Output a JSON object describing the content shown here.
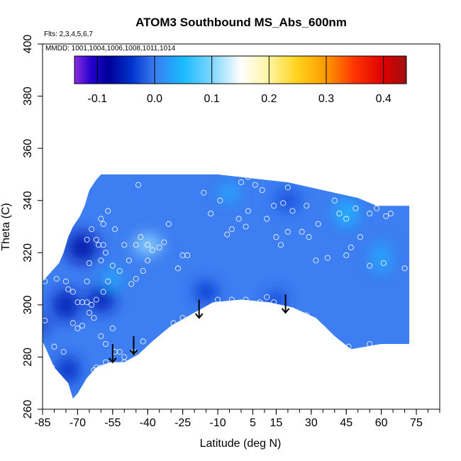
{
  "chart_data": {
    "type": "heatmap",
    "title": "ATOM3 Southbound MS_Abs_600nm",
    "flights_label": "Flts: 2,3,4,5,6,7",
    "dates_label": "MMDD: 1001,1004,1006,1008,1011,1014",
    "xlabel": "Latitude (deg N)",
    "ylabel": "Theta (C)",
    "xlim": [
      -85,
      85
    ],
    "ylim": [
      260,
      400
    ],
    "x_tick_labels": [
      "-85",
      "-70",
      "-55",
      "-40",
      "-25",
      "-10",
      "5",
      "15",
      "30",
      "45",
      "60",
      "75"
    ],
    "x_tick_values": [
      -85,
      -70,
      -55,
      -40,
      -25,
      -10,
      5,
      15,
      30,
      45,
      60,
      75
    ],
    "x_minor_step": 5,
    "y_tick_labels": [
      "260",
      "280",
      "300",
      "320",
      "340",
      "360",
      "380",
      "400"
    ],
    "y_tick_values": [
      260,
      280,
      300,
      320,
      340,
      360,
      380,
      400
    ],
    "colorbar": {
      "range": [
        -0.14,
        0.44
      ],
      "tick_labels": [
        "-0.1",
        "0.0",
        "0.1",
        "0.2",
        "0.3",
        "0.4"
      ],
      "tick_values": [
        -0.1,
        0.0,
        0.1,
        0.2,
        0.3,
        0.4
      ],
      "stops": [
        {
          "v": -0.14,
          "color": "#8a2be2"
        },
        {
          "v": -0.11,
          "color": "#2200cc"
        },
        {
          "v": -0.08,
          "color": "#000099"
        },
        {
          "v": -0.04,
          "color": "#0033cc"
        },
        {
          "v": 0.0,
          "color": "#3a7cf2"
        },
        {
          "v": 0.05,
          "color": "#19bbff"
        },
        {
          "v": 0.1,
          "color": "#7fd6ff"
        },
        {
          "v": 0.15,
          "color": "#ffffff"
        },
        {
          "v": 0.2,
          "color": "#fff5a0"
        },
        {
          "v": 0.25,
          "color": "#ffd21a"
        },
        {
          "v": 0.3,
          "color": "#ff9900"
        },
        {
          "v": 0.35,
          "color": "#ff3300"
        },
        {
          "v": 0.4,
          "color": "#dd0000"
        },
        {
          "v": 0.44,
          "color": "#a01010"
        }
      ]
    },
    "field_base_color": "#3d7ef2",
    "field_outline": [
      [
        -87,
        290
      ],
      [
        -85,
        300
      ],
      [
        -85,
        309
      ],
      [
        -81,
        313
      ],
      [
        -78,
        316
      ],
      [
        -76,
        320
      ],
      [
        -74,
        326
      ],
      [
        -72,
        330
      ],
      [
        -69,
        334
      ],
      [
        -67,
        338
      ],
      [
        -65,
        344
      ],
      [
        -62,
        348
      ],
      [
        -60,
        350
      ],
      [
        -10,
        350
      ],
      [
        0,
        349
      ],
      [
        20,
        347
      ],
      [
        40,
        343
      ],
      [
        50,
        341
      ],
      [
        58,
        338
      ],
      [
        72,
        338
      ],
      [
        72,
        285
      ],
      [
        60,
        285
      ],
      [
        47,
        283
      ],
      [
        40,
        288
      ],
      [
        32,
        295
      ],
      [
        22,
        299
      ],
      [
        12,
        301
      ],
      [
        0,
        302
      ],
      [
        -12,
        301
      ],
      [
        -20,
        297
      ],
      [
        -30,
        292
      ],
      [
        -38,
        286
      ],
      [
        -44,
        281
      ],
      [
        -50,
        278
      ],
      [
        -56,
        278
      ],
      [
        -62,
        276
      ],
      [
        -66,
        272
      ],
      [
        -70,
        266
      ],
      [
        -72,
        264
      ],
      [
        -74,
        270
      ],
      [
        -80,
        276
      ],
      [
        -84,
        284
      ]
    ],
    "field_features": [
      {
        "x": -68,
        "y": 322,
        "rx": 7,
        "ry": 6,
        "v": -0.07
      },
      {
        "x": -75,
        "y": 300,
        "rx": 6,
        "ry": 6,
        "v": -0.06
      },
      {
        "x": -60,
        "y": 302,
        "rx": 6,
        "ry": 5,
        "v": -0.06
      },
      {
        "x": -85,
        "y": 292,
        "rx": 2,
        "ry": 3,
        "v": -0.08
      },
      {
        "x": -74,
        "y": 275,
        "rx": 5,
        "ry": 5,
        "v": -0.05
      },
      {
        "x": -40,
        "y": 323,
        "rx": 6,
        "ry": 4,
        "v": 0.11
      },
      {
        "x": -55,
        "y": 310,
        "rx": 4,
        "ry": 3,
        "v": 0.05
      },
      {
        "x": 45,
        "y": 335,
        "rx": 5,
        "ry": 5,
        "v": 0.05
      },
      {
        "x": 60,
        "y": 318,
        "rx": 4,
        "ry": 6,
        "v": 0.04
      },
      {
        "x": -5,
        "y": 343,
        "rx": 4,
        "ry": 3,
        "v": 0.05
      },
      {
        "x": -15,
        "y": 305,
        "rx": 5,
        "ry": 4,
        "v": -0.04
      },
      {
        "x": 15,
        "y": 302,
        "rx": 4,
        "ry": 3,
        "v": -0.04
      },
      {
        "x": 20,
        "y": 340,
        "rx": 5,
        "ry": 4,
        "v": -0.03
      }
    ],
    "observation_points": [
      [
        -84,
        309
      ],
      [
        -79,
        310
      ],
      [
        -75,
        309
      ],
      [
        -74,
        306
      ],
      [
        -72,
        305
      ],
      [
        -70,
        301
      ],
      [
        -68,
        301
      ],
      [
        -66,
        301
      ],
      [
        -72,
        293
      ],
      [
        -70,
        291
      ],
      [
        -68,
        292
      ],
      [
        -65,
        297
      ],
      [
        -63,
        295
      ],
      [
        -60,
        288
      ],
      [
        -58,
        285
      ],
      [
        -55,
        291
      ],
      [
        -62,
        276
      ],
      [
        -63,
        275
      ],
      [
        -60,
        276
      ],
      [
        -52,
        282
      ],
      [
        -50,
        278
      ],
      [
        -46,
        282
      ],
      [
        -42,
        286
      ],
      [
        -38,
        284
      ],
      [
        -33,
        287
      ],
      [
        -29,
        293
      ],
      [
        -25,
        295
      ],
      [
        -60,
        333
      ],
      [
        -59,
        331
      ],
      [
        -57,
        336
      ],
      [
        -54,
        329
      ],
      [
        -50,
        323
      ],
      [
        -48,
        317
      ],
      [
        -45,
        323
      ],
      [
        -43,
        326
      ],
      [
        -40,
        323
      ],
      [
        -38,
        321
      ],
      [
        -35,
        322
      ],
      [
        -33,
        324
      ],
      [
        -31,
        331
      ],
      [
        -27,
        314
      ],
      [
        -25,
        319
      ],
      [
        -23,
        319
      ],
      [
        -40,
        317
      ],
      [
        -42,
        313
      ],
      [
        -45,
        310
      ],
      [
        -47,
        308
      ],
      [
        -52,
        313
      ],
      [
        -55,
        315
      ],
      [
        -57,
        309
      ],
      [
        -59,
        305
      ],
      [
        -62,
        302
      ],
      [
        -64,
        300
      ],
      [
        -66,
        309
      ],
      [
        -60,
        317
      ],
      [
        -62,
        325
      ],
      [
        -65,
        316
      ],
      [
        -66,
        325
      ],
      [
        -64,
        329
      ],
      [
        -61,
        323
      ],
      [
        -58,
        320
      ],
      [
        -59,
        323
      ],
      [
        -44,
        346
      ],
      [
        -16,
        343
      ],
      [
        -13,
        335
      ],
      [
        -9,
        340
      ],
      [
        -4,
        329
      ],
      [
        -6,
        327
      ],
      [
        -1,
        333
      ],
      [
        2,
        330
      ],
      [
        3,
        336
      ],
      [
        0,
        347
      ],
      [
        3,
        349
      ],
      [
        6,
        346
      ],
      [
        9,
        344
      ],
      [
        11,
        333
      ],
      [
        14,
        338
      ],
      [
        18,
        339
      ],
      [
        20,
        345
      ],
      [
        20,
        328
      ],
      [
        15,
        326
      ],
      [
        17,
        323
      ],
      [
        22,
        336
      ],
      [
        28,
        338
      ],
      [
        33,
        331
      ],
      [
        40,
        340
      ],
      [
        42,
        335
      ],
      [
        45,
        333
      ],
      [
        49,
        337
      ],
      [
        55,
        335
      ],
      [
        58,
        337
      ],
      [
        62,
        334
      ],
      [
        64,
        335
      ],
      [
        51,
        326
      ],
      [
        37,
        318
      ],
      [
        32,
        317
      ],
      [
        29,
        326
      ],
      [
        26,
        328
      ],
      [
        45,
        319
      ],
      [
        47,
        322
      ],
      [
        55,
        315
      ],
      [
        61,
        316
      ],
      [
        70,
        314
      ],
      [
        -10,
        302
      ],
      [
        -4,
        302
      ],
      [
        2,
        302
      ],
      [
        8,
        301
      ],
      [
        14,
        301
      ],
      [
        11,
        303
      ],
      [
        20,
        298
      ],
      [
        28,
        296
      ],
      [
        34,
        291
      ],
      [
        35,
        291
      ],
      [
        38,
        287
      ],
      [
        46,
        284
      ],
      [
        55,
        285
      ],
      [
        72,
        284
      ],
      [
        -84,
        294
      ],
      [
        -80,
        284
      ],
      [
        -76,
        282
      ],
      [
        -81,
        276
      ],
      [
        -58,
        278
      ],
      [
        -54,
        282
      ],
      [
        -50,
        280
      ]
    ],
    "arrows": [
      {
        "x": -55,
        "y_top": 285,
        "y_tip": 278
      },
      {
        "x": -46,
        "y_top": 288,
        "y_tip": 281
      },
      {
        "x": -18,
        "y_top": 302,
        "y_tip": 295
      },
      {
        "x": 19,
        "y_top": 304,
        "y_tip": 297
      }
    ]
  }
}
